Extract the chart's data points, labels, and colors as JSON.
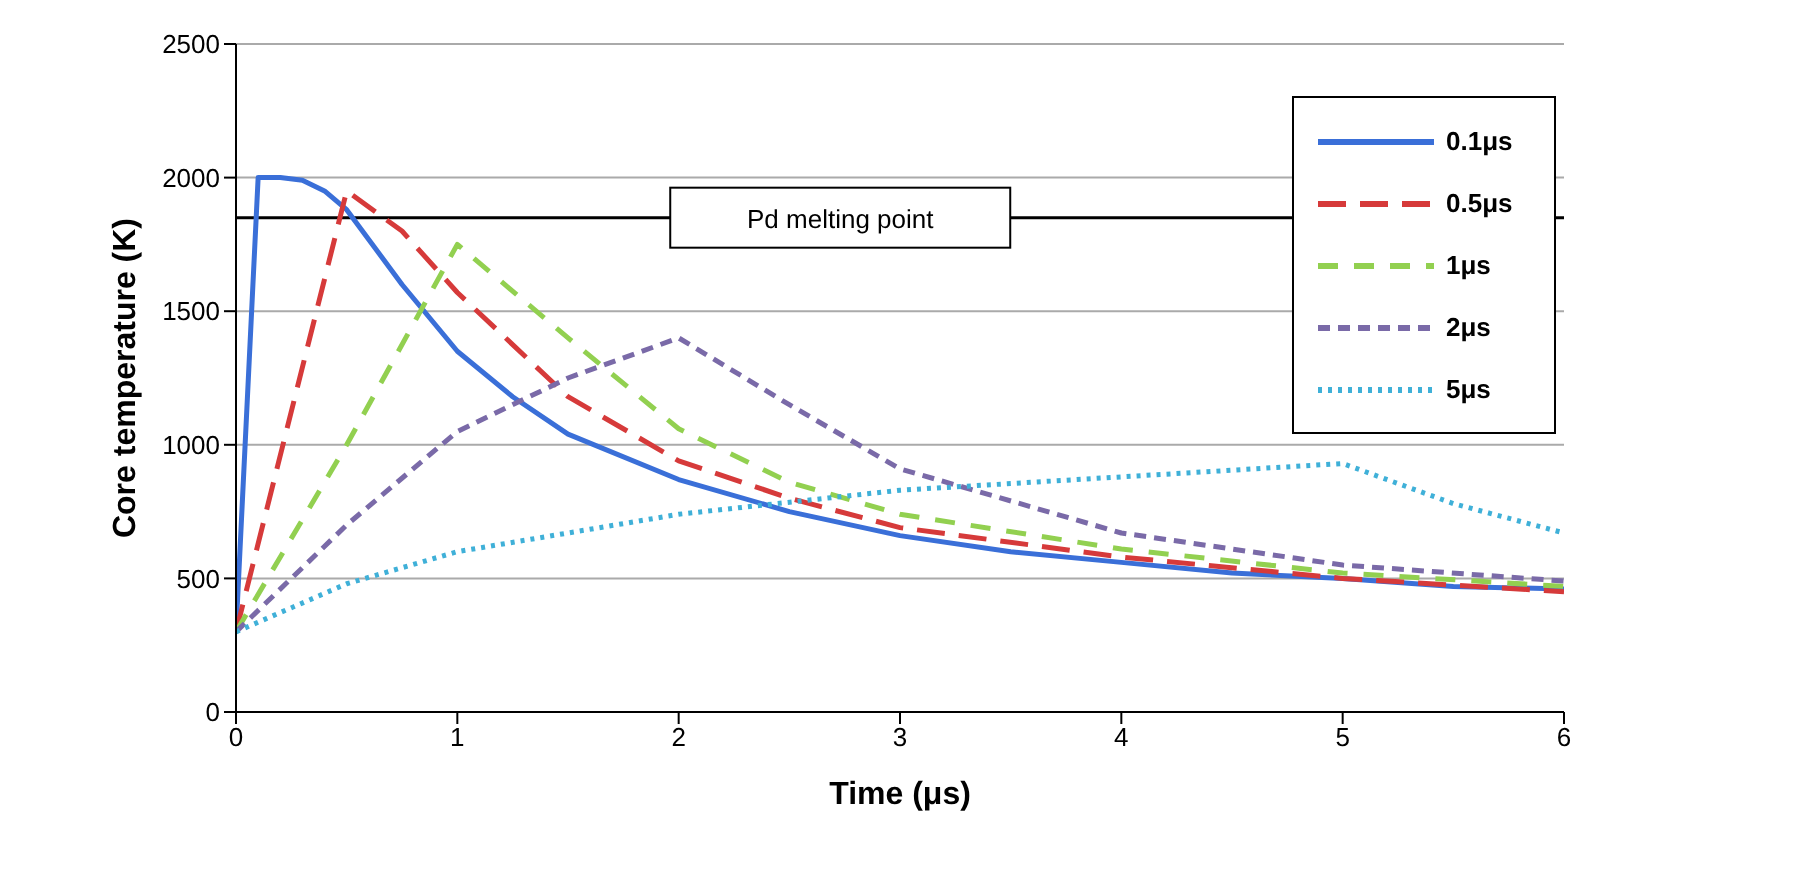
{
  "chart_data": {
    "type": "line",
    "xlabel": "Time (μs)",
    "ylabel": "Core temperature (K)",
    "xlim": [
      0,
      6
    ],
    "xticks": [
      0,
      1,
      2,
      3,
      4,
      5,
      6
    ],
    "ylim": [
      0,
      2500
    ],
    "yticks": [
      0,
      500,
      1000,
      1500,
      2000,
      2500
    ],
    "grid": "y",
    "legend": "top right",
    "marker": "none",
    "ref_lines": [
      {
        "axis": "y",
        "value": 1850,
        "label": "Pd melting point",
        "color": "#000000"
      }
    ],
    "series": [
      {
        "name": "0.1μs",
        "color": "#3a6fd8",
        "line_style": "solid",
        "x": [
          0,
          0.1,
          0.2,
          0.3,
          0.4,
          0.5,
          0.75,
          1,
          1.25,
          1.5,
          2,
          2.5,
          3,
          3.5,
          4,
          4.5,
          5,
          5.5,
          6
        ],
        "values": [
          300,
          2000,
          2000,
          1990,
          1950,
          1880,
          1600,
          1350,
          1180,
          1040,
          870,
          750,
          660,
          600,
          560,
          520,
          500,
          470,
          460
        ]
      },
      {
        "name": "0.5μs",
        "color": "#d63a3a",
        "line_style": "dashed",
        "x": [
          0,
          0.5,
          0.75,
          1,
          1.5,
          2,
          2.5,
          3,
          4,
          5,
          6
        ],
        "values": [
          300,
          1950,
          1800,
          1570,
          1180,
          940,
          800,
          690,
          580,
          500,
          450
        ]
      },
      {
        "name": "1μs",
        "color": "#92d050",
        "line_style": "dashed",
        "x": [
          0,
          0.5,
          1,
          1.5,
          2,
          2.5,
          3,
          4,
          5,
          6
        ],
        "values": [
          300,
          1000,
          1750,
          1400,
          1060,
          860,
          740,
          610,
          520,
          470
        ]
      },
      {
        "name": "2μs",
        "color": "#7a6aa8",
        "line_style": "dashed",
        "x": [
          0,
          0.5,
          1,
          1.5,
          2,
          2.5,
          3,
          4,
          5,
          6
        ],
        "values": [
          300,
          700,
          1050,
          1250,
          1400,
          1150,
          910,
          670,
          550,
          490
        ]
      },
      {
        "name": "5μs",
        "color": "#3fb0d8",
        "line_style": "dotted",
        "x": [
          0,
          0.5,
          1,
          2,
          3,
          4,
          5,
          5.5,
          6
        ],
        "values": [
          300,
          480,
          600,
          740,
          830,
          880,
          930,
          780,
          670
        ]
      }
    ]
  }
}
